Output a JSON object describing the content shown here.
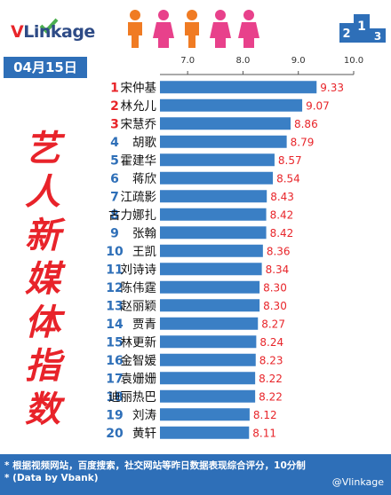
{
  "logo": {
    "text": "VLinkage"
  },
  "date": "04月15日",
  "side_title": [
    "艺",
    "人",
    "新",
    "媒",
    "体",
    "指",
    "数"
  ],
  "colors": {
    "bar": "#3a7fc5",
    "value": "#e8252a",
    "rank": "#e8252a",
    "rank_other": "#2e6fb8",
    "badge": "#2e6fb8"
  },
  "chart_data": {
    "type": "bar",
    "orientation": "horizontal",
    "title": "",
    "xlabel": "",
    "ylabel": "",
    "xlim": [
      6.5,
      10.0
    ],
    "xticks": [
      "7.0",
      "8.0",
      "9.0",
      "10.0"
    ],
    "ranks": [
      "1",
      "2",
      "3",
      "4",
      "5",
      "6",
      "7",
      "8",
      "9",
      "10",
      "11",
      "12",
      "13",
      "14",
      "15",
      "16",
      "17",
      "18",
      "19",
      "20"
    ],
    "categories": [
      "宋仲基",
      "林允儿",
      "宋慧乔",
      "胡歌",
      "霍建华",
      "蒋欣",
      "江疏影",
      "古力娜扎",
      "张翰",
      "王凯",
      "刘诗诗",
      "陈伟霆",
      "赵丽颖",
      "贾青",
      "林更新",
      "金智媛",
      "袁姗姗",
      "迪丽热巴",
      "刘涛",
      "黄轩"
    ],
    "values": [
      9.33,
      9.07,
      8.86,
      8.79,
      8.57,
      8.54,
      8.43,
      8.42,
      8.42,
      8.36,
      8.34,
      8.3,
      8.3,
      8.27,
      8.24,
      8.23,
      8.22,
      8.22,
      8.12,
      8.11
    ],
    "value_labels": [
      "9.33",
      "9.07",
      "8.86",
      "8.79",
      "8.57",
      "8.54",
      "8.43",
      "8.42",
      "8.42",
      "8.36",
      "8.34",
      "8.30",
      "8.30",
      "8.27",
      "8.24",
      "8.23",
      "8.22",
      "8.22",
      "8.12",
      "8.11"
    ],
    "grid": false
  },
  "footer": {
    "line1": "* 根据视频网站，百度搜索，社交网站等昨日数据表现综合评分，10分制",
    "line2": "* (Data by Vbank)"
  },
  "watermark": "@Vlinkage"
}
